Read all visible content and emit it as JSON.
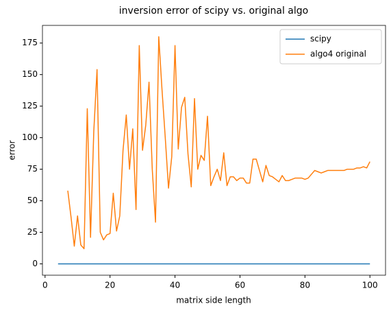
{
  "chart_data": {
    "type": "line",
    "title": "inversion error of scipy vs. original algo",
    "x_label": "matrix side length",
    "y_label": "error",
    "x": [
      4,
      5,
      6,
      7,
      8,
      9,
      10,
      11,
      12,
      13,
      14,
      15,
      16,
      17,
      18,
      19,
      20,
      21,
      22,
      23,
      24,
      25,
      26,
      27,
      28,
      29,
      30,
      31,
      32,
      33,
      34,
      35,
      36,
      37,
      38,
      39,
      40,
      41,
      42,
      43,
      44,
      45,
      46,
      47,
      48,
      49,
      50,
      51,
      52,
      53,
      54,
      55,
      56,
      57,
      58,
      59,
      60,
      61,
      62,
      63,
      64,
      65,
      66,
      67,
      68,
      69,
      70,
      71,
      72,
      73,
      74,
      75,
      76,
      77,
      78,
      79,
      80,
      81,
      82,
      83,
      84,
      85,
      86,
      87,
      88,
      89,
      90,
      91,
      92,
      93,
      94,
      95,
      96,
      97,
      98,
      99,
      100
    ],
    "series": [
      {
        "name": "scipy",
        "color": "#1f77b4",
        "values": [
          0,
          0,
          0,
          0,
          0,
          0,
          0,
          0,
          0,
          0,
          0,
          0,
          0,
          0,
          0,
          0,
          0,
          0,
          0,
          0,
          0,
          0,
          0,
          0,
          0,
          0,
          0,
          0,
          0,
          0,
          0,
          0,
          0,
          0,
          0,
          0,
          0,
          0,
          0,
          0,
          0,
          0,
          0,
          0,
          0,
          0,
          0,
          0,
          0,
          0,
          0,
          0,
          0,
          0,
          0,
          0,
          0,
          0,
          0,
          0,
          0,
          0,
          0,
          0,
          0,
          0,
          0,
          0,
          0,
          0,
          0,
          0,
          0,
          0,
          0,
          0,
          0,
          0,
          0,
          0,
          0,
          0,
          0,
          0,
          0,
          0,
          0,
          0,
          0,
          0,
          0,
          0,
          0,
          0,
          0,
          0,
          0
        ]
      },
      {
        "name": "algo4 original",
        "color": "#ff7f0e",
        "values": [
          null,
          null,
          null,
          58,
          37,
          14,
          38,
          15,
          12,
          123,
          21,
          105,
          154,
          25,
          19,
          23,
          24,
          56,
          26,
          38,
          90,
          118,
          75,
          107,
          43,
          173,
          90,
          110,
          144,
          75,
          33,
          180,
          138,
          100,
          60,
          85,
          173,
          91,
          124,
          132,
          87,
          61,
          131,
          75,
          86,
          82,
          117,
          62,
          69,
          75,
          66,
          88,
          62,
          69,
          69,
          66,
          68,
          68,
          64,
          64,
          83,
          83,
          74,
          65,
          78,
          70,
          69,
          67,
          65,
          70,
          66,
          66,
          67,
          68,
          68,
          68,
          67,
          68,
          71,
          74,
          73,
          72,
          73,
          74,
          74,
          74,
          74,
          74,
          74,
          75,
          75,
          75,
          76,
          76,
          77,
          76,
          81
        ]
      }
    ],
    "xlim": [
      -0.8,
      104.8
    ],
    "ylim": [
      -9,
      189
    ],
    "xticks": [
      0,
      20,
      40,
      60,
      80,
      100
    ],
    "yticks": [
      0,
      25,
      50,
      75,
      100,
      125,
      150,
      175
    ],
    "legend": "upper right"
  }
}
